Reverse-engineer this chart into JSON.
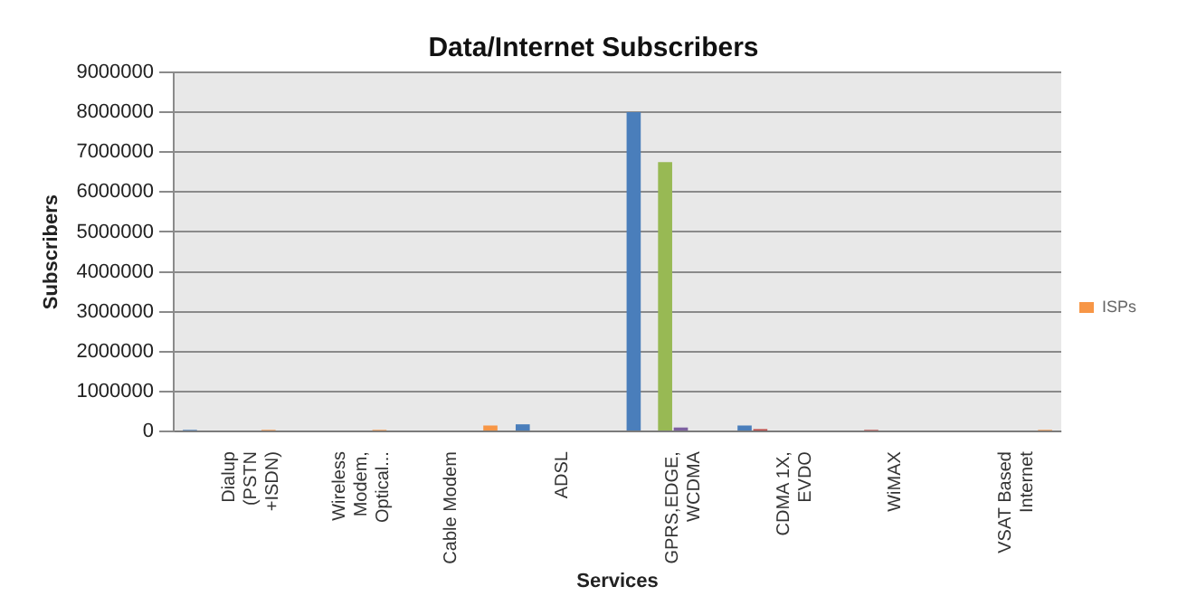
{
  "chart_data": {
    "type": "bar",
    "title": "Data/Internet Subscribers",
    "xlabel": "Services",
    "ylabel": "Subscribers",
    "categories": [
      "Dialup (PSTN +ISDN)",
      "Wireless Modem, Optical...",
      "Cable Modem",
      "ADSL",
      "GPRS,EDGE, WCDMA",
      "CDMA 1X, EVDO",
      "WiMAX",
      "VSAT Based Internet"
    ],
    "series": [
      {
        "color": "#4a7ebb",
        "values": [
          40000,
          0,
          0,
          180000,
          8000000,
          150000,
          0,
          0
        ]
      },
      {
        "color": "#be4b48",
        "values": [
          0,
          0,
          0,
          0,
          0,
          60000,
          40000,
          0
        ]
      },
      {
        "color": "#98b954",
        "values": [
          0,
          0,
          0,
          0,
          6750000,
          0,
          0,
          0
        ]
      },
      {
        "color": "#7d60a0",
        "values": [
          0,
          0,
          0,
          0,
          100000,
          0,
          0,
          0
        ]
      },
      {
        "color": "#46aac5",
        "values": [
          0,
          0,
          0,
          0,
          0,
          0,
          0,
          0
        ]
      },
      {
        "name": "ISPs",
        "color": "#f79646",
        "values": [
          40000,
          40000,
          150000,
          0,
          0,
          0,
          0,
          40000
        ]
      }
    ],
    "ylim": [
      0,
      9000000
    ],
    "yticks": [
      0,
      1000000,
      2000000,
      3000000,
      4000000,
      5000000,
      6000000,
      7000000,
      8000000,
      9000000
    ],
    "grid": "y",
    "legend": "right"
  }
}
